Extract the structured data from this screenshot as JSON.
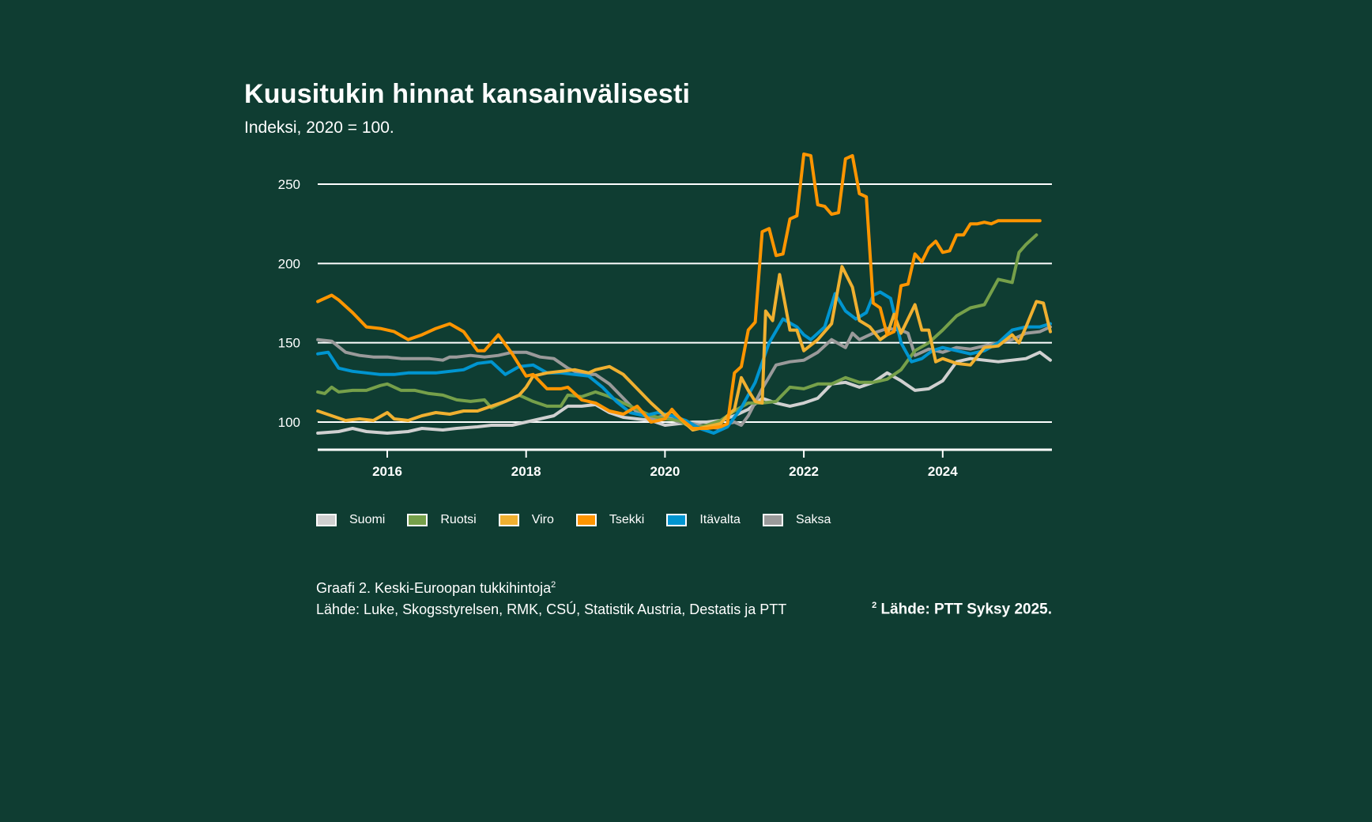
{
  "header": {
    "title": "Kuusitukin hinnat kansainvälisesti",
    "subtitle": "Indeksi, 2020 = 100."
  },
  "footer": {
    "caption": "Graafi 2. Keski-Euroopan tukkihintoja",
    "caption_sup": "2",
    "sources": "Lähde: Luke, Skogsstyrelsen, RMK, CSÚ, Statistik Austria, Destatis ja PTT",
    "footnote_sup": "2",
    "footnote": "Lähde: PTT Syksy 2025."
  },
  "chart_data": {
    "type": "line",
    "title": "Kuusitukin hinnat kansainvälisesti",
    "subtitle": "Indeksi, 2020 = 100.",
    "xlabel": "",
    "ylabel": "",
    "xlim": [
      2015.0,
      2025.6
    ],
    "ylim": [
      82,
      260
    ],
    "yticks": [
      100,
      150,
      200,
      250
    ],
    "ytick_labels": [
      "100",
      "150",
      "200",
      "250"
    ],
    "xticks": [
      2016,
      2018,
      2020,
      2022,
      2024
    ],
    "xtick_labels": [
      "2016",
      "2018",
      "2020",
      "2022",
      "2024"
    ],
    "grid": "horizontal",
    "legend_position": "bottom",
    "series": [
      {
        "name": "Suomi",
        "color": "#d0d0d0",
        "x": [
          2015.0,
          2015.3,
          2015.5,
          2015.7,
          2016.0,
          2016.3,
          2016.5,
          2016.8,
          2017.0,
          2017.3,
          2017.5,
          2017.8,
          2018.0,
          2018.2,
          2018.4,
          2018.6,
          2018.8,
          2019.0,
          2019.2,
          2019.4,
          2019.6,
          2019.8,
          2020.0,
          2020.2,
          2020.4,
          2020.6,
          2020.8,
          2021.0,
          2021.2,
          2021.4,
          2021.6,
          2021.8,
          2022.0,
          2022.2,
          2022.4,
          2022.6,
          2022.8,
          2023.0,
          2023.2,
          2023.4,
          2023.6,
          2023.8,
          2024.0,
          2024.2,
          2024.4,
          2024.6,
          2024.8,
          2025.0,
          2025.2,
          2025.4,
          2025.55
        ],
        "values": [
          93,
          94,
          96,
          94,
          93,
          94,
          96,
          95,
          96,
          97,
          98,
          98,
          100,
          102,
          104,
          110,
          110,
          111,
          106,
          103,
          102,
          101,
          98,
          99,
          100,
          100,
          101,
          104,
          108,
          115,
          112,
          110,
          112,
          115,
          124,
          125,
          122,
          125,
          131,
          126,
          120,
          121,
          126,
          138,
          140,
          139,
          138,
          139,
          140,
          144,
          139
        ]
      },
      {
        "name": "Ruotsi",
        "color": "#76a04a",
        "x": [
          2015.0,
          2015.1,
          2015.2,
          2015.3,
          2015.5,
          2015.7,
          2015.9,
          2016.0,
          2016.2,
          2016.4,
          2016.6,
          2016.8,
          2017.0,
          2017.2,
          2017.4,
          2017.5,
          2017.7,
          2017.9,
          2018.1,
          2018.3,
          2018.5,
          2018.6,
          2018.8,
          2019.0,
          2019.2,
          2019.4,
          2019.6,
          2019.8,
          2020.0,
          2020.2,
          2020.4,
          2020.6,
          2020.8,
          2021.0,
          2021.2,
          2021.4,
          2021.6,
          2021.8,
          2022.0,
          2022.2,
          2022.4,
          2022.6,
          2022.8,
          2023.0,
          2023.2,
          2023.4,
          2023.6,
          2023.8,
          2024.0,
          2024.2,
          2024.4,
          2024.6,
          2024.8,
          2025.0,
          2025.1,
          2025.2,
          2025.35
        ],
        "values": [
          119,
          118,
          122,
          119,
          120,
          120,
          123,
          124,
          120,
          120,
          118,
          117,
          114,
          113,
          114,
          109,
          113,
          117,
          113,
          110,
          110,
          117,
          116,
          119,
          116,
          112,
          108,
          104,
          102,
          101,
          96,
          98,
          101,
          107,
          112,
          112,
          113,
          122,
          121,
          124,
          124,
          128,
          125,
          125,
          127,
          133,
          145,
          150,
          158,
          167,
          172,
          174,
          190,
          188,
          207,
          212,
          218
        ]
      },
      {
        "name": "Viro",
        "color": "#f0b030",
        "x": [
          2015.0,
          2015.2,
          2015.4,
          2015.6,
          2015.8,
          2016.0,
          2016.1,
          2016.3,
          2016.5,
          2016.7,
          2016.9,
          2017.1,
          2017.3,
          2017.5,
          2017.7,
          2017.9,
          2018.0,
          2018.1,
          2018.3,
          2018.5,
          2018.7,
          2018.9,
          2019.0,
          2019.2,
          2019.4,
          2019.6,
          2019.8,
          2020.0,
          2020.1,
          2020.2,
          2020.4,
          2020.6,
          2020.8,
          2020.9,
          2021.0,
          2021.1,
          2021.2,
          2021.3,
          2021.4,
          2021.45,
          2021.55,
          2021.65,
          2021.8,
          2021.9,
          2022.0,
          2022.2,
          2022.4,
          2022.55,
          2022.7,
          2022.8,
          2022.95,
          2023.1,
          2023.2,
          2023.3,
          2023.4,
          2023.5,
          2023.6,
          2023.7,
          2023.8,
          2023.9,
          2024.0,
          2024.2,
          2024.4,
          2024.6,
          2024.8,
          2025.0,
          2025.1,
          2025.2,
          2025.35,
          2025.45,
          2025.55
        ],
        "values": [
          107,
          104,
          101,
          102,
          101,
          106,
          102,
          101,
          104,
          106,
          105,
          107,
          107,
          110,
          113,
          117,
          122,
          129,
          131,
          132,
          133,
          131,
          133,
          135,
          130,
          121,
          112,
          104,
          107,
          103,
          95,
          97,
          99,
          104,
          108,
          128,
          120,
          113,
          112,
          170,
          164,
          193,
          158,
          158,
          145,
          152,
          162,
          198,
          185,
          164,
          160,
          152,
          155,
          168,
          156,
          165,
          174,
          158,
          158,
          138,
          140,
          137,
          136,
          147,
          148,
          155,
          150,
          160,
          176,
          175,
          157
        ]
      },
      {
        "name": "Tsekki",
        "color": "#ff9500",
        "x": [
          2015.0,
          2015.2,
          2015.3,
          2015.5,
          2015.7,
          2015.9,
          2016.1,
          2016.3,
          2016.5,
          2016.7,
          2016.9,
          2017.1,
          2017.3,
          2017.4,
          2017.6,
          2017.8,
          2018.0,
          2018.1,
          2018.3,
          2018.5,
          2018.6,
          2018.8,
          2019.0,
          2019.2,
          2019.4,
          2019.6,
          2019.8,
          2020.0,
          2020.1,
          2020.2,
          2020.4,
          2020.6,
          2020.8,
          2020.9,
          2021.0,
          2021.1,
          2021.2,
          2021.3,
          2021.4,
          2021.5,
          2021.6,
          2021.7,
          2021.8,
          2021.9,
          2022.0,
          2022.1,
          2022.2,
          2022.3,
          2022.4,
          2022.5,
          2022.6,
          2022.7,
          2022.8,
          2022.9,
          2023.0,
          2023.1,
          2023.2,
          2023.3,
          2023.4,
          2023.5,
          2023.6,
          2023.7,
          2023.8,
          2023.9,
          2024.0,
          2024.1,
          2024.2,
          2024.3,
          2024.4,
          2024.5,
          2024.6,
          2024.7,
          2024.8,
          2024.9,
          2025.0,
          2025.1,
          2025.2,
          2025.3,
          2025.4
        ],
        "values": [
          176,
          180,
          177,
          169,
          160,
          159,
          157,
          152,
          155,
          159,
          162,
          157,
          145,
          145,
          155,
          143,
          129,
          130,
          121,
          121,
          122,
          114,
          112,
          107,
          105,
          110,
          100,
          102,
          108,
          103,
          96,
          96,
          97,
          99,
          131,
          135,
          158,
          163,
          220,
          222,
          205,
          206,
          228,
          230,
          269,
          268,
          237,
          236,
          231,
          232,
          266,
          268,
          244,
          242,
          175,
          172,
          155,
          157,
          186,
          187,
          206,
          201,
          210,
          214,
          207,
          208,
          218,
          218,
          225,
          225,
          226,
          225,
          227,
          227,
          227,
          227,
          227,
          227,
          227
        ]
      },
      {
        "name": "Itävalta",
        "color": "#0095d0",
        "x": [
          2015.0,
          2015.15,
          2015.3,
          2015.5,
          2015.7,
          2015.9,
          2016.1,
          2016.3,
          2016.5,
          2016.7,
          2016.9,
          2017.1,
          2017.3,
          2017.5,
          2017.7,
          2017.9,
          2018.1,
          2018.3,
          2018.5,
          2018.7,
          2018.9,
          2019.1,
          2019.3,
          2019.5,
          2019.7,
          2019.9,
          2020.1,
          2020.3,
          2020.5,
          2020.7,
          2020.9,
          2021.1,
          2021.3,
          2021.5,
          2021.7,
          2021.9,
          2022.0,
          2022.1,
          2022.3,
          2022.45,
          2022.6,
          2022.75,
          2022.9,
          2023.0,
          2023.1,
          2023.25,
          2023.4,
          2023.55,
          2023.7,
          2023.85,
          2024.0,
          2024.2,
          2024.4,
          2024.6,
          2024.8,
          2025.0,
          2025.2,
          2025.4,
          2025.55
        ],
        "values": [
          143,
          144,
          134,
          132,
          131,
          130,
          130,
          131,
          131,
          131,
          132,
          133,
          137,
          138,
          130,
          135,
          136,
          131,
          131,
          130,
          129,
          122,
          113,
          106,
          104,
          106,
          104,
          101,
          96,
          93,
          97,
          109,
          125,
          150,
          165,
          160,
          155,
          152,
          160,
          181,
          170,
          165,
          169,
          180,
          182,
          178,
          150,
          138,
          140,
          145,
          147,
          145,
          143,
          145,
          150,
          158,
          160,
          160,
          162
        ]
      },
      {
        "name": "Saksa",
        "color": "#9a9a9a",
        "x": [
          2015.0,
          2015.2,
          2015.4,
          2015.6,
          2015.8,
          2016.0,
          2016.2,
          2016.4,
          2016.6,
          2016.8,
          2016.9,
          2017.0,
          2017.2,
          2017.4,
          2017.6,
          2017.8,
          2018.0,
          2018.2,
          2018.4,
          2018.6,
          2018.8,
          2019.0,
          2019.2,
          2019.4,
          2019.6,
          2019.8,
          2020.0,
          2020.2,
          2020.4,
          2020.6,
          2020.8,
          2020.9,
          2021.0,
          2021.1,
          2021.2,
          2021.4,
          2021.6,
          2021.8,
          2022.0,
          2022.2,
          2022.4,
          2022.6,
          2022.7,
          2022.8,
          2022.9,
          2023.0,
          2023.2,
          2023.4,
          2023.5,
          2023.6,
          2023.8,
          2024.0,
          2024.2,
          2024.4,
          2024.6,
          2024.8,
          2025.0,
          2025.2,
          2025.4,
          2025.55
        ],
        "values": [
          152,
          151,
          144,
          142,
          141,
          141,
          140,
          140,
          140,
          139,
          141,
          141,
          142,
          141,
          142,
          144,
          144,
          141,
          140,
          134,
          130,
          130,
          124,
          115,
          106,
          102,
          104,
          100,
          99,
          97,
          96,
          99,
          100,
          98,
          104,
          121,
          136,
          138,
          139,
          144,
          152,
          147,
          156,
          152,
          154,
          156,
          159,
          158,
          156,
          142,
          146,
          144,
          147,
          146,
          148,
          150,
          152,
          156,
          157,
          160
        ]
      }
    ]
  }
}
